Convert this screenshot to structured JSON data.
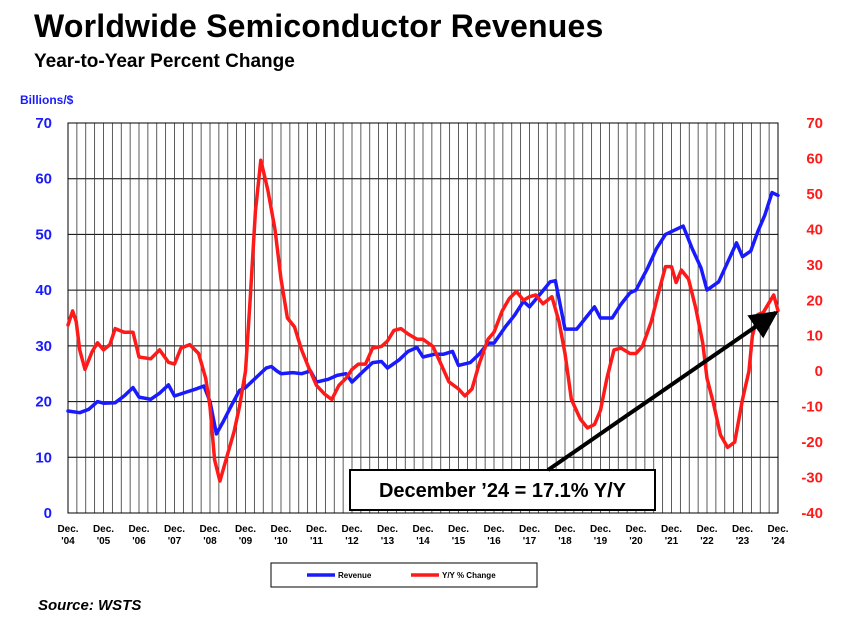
{
  "title": "Worldwide Semiconductor Revenues",
  "subtitle": "Year-to-Year Percent Change",
  "source": "Source: WSTS",
  "chart_data": {
    "type": "line",
    "title": "Worldwide Semiconductor Revenues",
    "subtitle": "Year-to-Year Percent Change",
    "ylabel": "Billions/$",
    "ylim": [
      0,
      70
    ],
    "y2lim": [
      -40,
      70
    ],
    "yticks": [
      0,
      10,
      20,
      30,
      40,
      50,
      60,
      70
    ],
    "y2ticks": [
      -40,
      -30,
      -20,
      -10,
      0,
      10,
      20,
      30,
      40,
      50,
      60,
      70
    ],
    "xlim": [
      2004.92,
      2024.92
    ],
    "x_ticks": [
      {
        "line1": "Dec.",
        "line2": "'04",
        "x": 2004.92
      },
      {
        "line1": "Dec.",
        "line2": "'05",
        "x": 2005.92
      },
      {
        "line1": "Dec.",
        "line2": "'06",
        "x": 2006.92
      },
      {
        "line1": "Dec.",
        "line2": "'07",
        "x": 2007.92
      },
      {
        "line1": "Dec.",
        "line2": "'08",
        "x": 2008.92
      },
      {
        "line1": "Dec.",
        "line2": "'09",
        "x": 2009.92
      },
      {
        "line1": "Dec.",
        "line2": "'10",
        "x": 2010.92
      },
      {
        "line1": "Dec.",
        "line2": "'11",
        "x": 2011.92
      },
      {
        "line1": "Dec.",
        "line2": "'12",
        "x": 2012.92
      },
      {
        "line1": "Dec.",
        "line2": "'13",
        "x": 2013.92
      },
      {
        "line1": "Dec.",
        "line2": "'14",
        "x": 2014.92
      },
      {
        "line1": "Dec.",
        "line2": "'15",
        "x": 2015.92
      },
      {
        "line1": "Dec.",
        "line2": "'16",
        "x": 2016.92
      },
      {
        "line1": "Dec.",
        "line2": "'17",
        "x": 2017.92
      },
      {
        "line1": "Dec.",
        "line2": "'18",
        "x": 2018.92
      },
      {
        "line1": "Dec.",
        "line2": "'19",
        "x": 2019.92
      },
      {
        "line1": "Dec.",
        "line2": "'20",
        "x": 2020.92
      },
      {
        "line1": "Dec.",
        "line2": "'21",
        "x": 2021.92
      },
      {
        "line1": "Dec.",
        "line2": "'22",
        "x": 2022.92
      },
      {
        "line1": "Dec.",
        "line2": "'23",
        "x": 2023.92
      },
      {
        "line1": "Dec.",
        "line2": "'24",
        "x": 2024.92
      }
    ],
    "grid": true,
    "legend": {
      "placement": "bottom-center"
    },
    "series": [
      {
        "name": "Revenue",
        "color": "#1a1aff",
        "axis": "left",
        "points": [
          [
            2004.92,
            18.3
          ],
          [
            2005.25,
            18.0
          ],
          [
            2005.5,
            18.6
          ],
          [
            2005.75,
            20.0
          ],
          [
            2005.92,
            19.7
          ],
          [
            2006.25,
            19.8
          ],
          [
            2006.5,
            21.0
          ],
          [
            2006.75,
            22.5
          ],
          [
            2006.92,
            20.8
          ],
          [
            2007.25,
            20.4
          ],
          [
            2007.5,
            21.5
          ],
          [
            2007.75,
            23.0
          ],
          [
            2007.92,
            21.0
          ],
          [
            2008.25,
            21.7
          ],
          [
            2008.5,
            22.2
          ],
          [
            2008.75,
            22.8
          ],
          [
            2008.92,
            20.0
          ],
          [
            2009.1,
            14.2
          ],
          [
            2009.3,
            16.5
          ],
          [
            2009.5,
            19.0
          ],
          [
            2009.75,
            22.0
          ],
          [
            2009.92,
            22.5
          ],
          [
            2010.25,
            24.5
          ],
          [
            2010.5,
            26.0
          ],
          [
            2010.65,
            26.3
          ],
          [
            2010.8,
            25.5
          ],
          [
            2010.92,
            25.0
          ],
          [
            2011.25,
            25.2
          ],
          [
            2011.5,
            25.0
          ],
          [
            2011.75,
            25.5
          ],
          [
            2011.92,
            23.5
          ],
          [
            2012.25,
            24.0
          ],
          [
            2012.5,
            24.7
          ],
          [
            2012.75,
            25.0
          ],
          [
            2012.92,
            23.5
          ],
          [
            2013.25,
            25.5
          ],
          [
            2013.5,
            27.0
          ],
          [
            2013.75,
            27.2
          ],
          [
            2013.92,
            26.0
          ],
          [
            2014.25,
            27.5
          ],
          [
            2014.5,
            29.0
          ],
          [
            2014.75,
            29.7
          ],
          [
            2014.92,
            28.0
          ],
          [
            2015.25,
            28.5
          ],
          [
            2015.5,
            28.5
          ],
          [
            2015.75,
            29.0
          ],
          [
            2015.92,
            26.5
          ],
          [
            2016.25,
            27.0
          ],
          [
            2016.5,
            28.5
          ],
          [
            2016.75,
            30.5
          ],
          [
            2016.92,
            30.5
          ],
          [
            2017.25,
            33.5
          ],
          [
            2017.5,
            35.5
          ],
          [
            2017.75,
            38.0
          ],
          [
            2017.92,
            37.0
          ],
          [
            2018.25,
            39.5
          ],
          [
            2018.5,
            41.5
          ],
          [
            2018.65,
            41.7
          ],
          [
            2018.92,
            33.0
          ],
          [
            2019.25,
            33.0
          ],
          [
            2019.5,
            35.0
          ],
          [
            2019.75,
            37.0
          ],
          [
            2019.92,
            35.0
          ],
          [
            2020.25,
            35.0
          ],
          [
            2020.5,
            37.5
          ],
          [
            2020.75,
            39.5
          ],
          [
            2020.92,
            40.0
          ],
          [
            2021.25,
            44.0
          ],
          [
            2021.5,
            47.5
          ],
          [
            2021.75,
            50.0
          ],
          [
            2021.92,
            50.5
          ],
          [
            2022.25,
            51.5
          ],
          [
            2022.5,
            47.5
          ],
          [
            2022.75,
            44.0
          ],
          [
            2022.92,
            40.0
          ],
          [
            2023.25,
            41.5
          ],
          [
            2023.5,
            45.0
          ],
          [
            2023.75,
            48.5
          ],
          [
            2023.92,
            46.0
          ],
          [
            2024.15,
            47.0
          ],
          [
            2024.35,
            50.5
          ],
          [
            2024.55,
            53.5
          ],
          [
            2024.75,
            57.5
          ],
          [
            2024.92,
            57.0
          ]
        ]
      },
      {
        "name": "Y/Y % Change",
        "color": "#ff1a1a",
        "axis": "right",
        "points": [
          [
            2004.92,
            13.0
          ],
          [
            2005.05,
            17.0
          ],
          [
            2005.15,
            14.0
          ],
          [
            2005.25,
            6.0
          ],
          [
            2005.4,
            0.5
          ],
          [
            2005.6,
            5.5
          ],
          [
            2005.75,
            8.0
          ],
          [
            2005.92,
            6.0
          ],
          [
            2006.1,
            7.5
          ],
          [
            2006.25,
            12.0
          ],
          [
            2006.5,
            11.0
          ],
          [
            2006.75,
            11.0
          ],
          [
            2006.92,
            4.0
          ],
          [
            2007.25,
            3.5
          ],
          [
            2007.5,
            6.0
          ],
          [
            2007.75,
            2.5
          ],
          [
            2007.92,
            2.0
          ],
          [
            2008.1,
            6.5
          ],
          [
            2008.35,
            7.5
          ],
          [
            2008.6,
            5.0
          ],
          [
            2008.8,
            -2.0
          ],
          [
            2008.92,
            -10.0
          ],
          [
            2009.05,
            -25.0
          ],
          [
            2009.2,
            -31.0
          ],
          [
            2009.4,
            -24.0
          ],
          [
            2009.6,
            -17.0
          ],
          [
            2009.75,
            -10.0
          ],
          [
            2009.92,
            0.0
          ],
          [
            2010.05,
            20.0
          ],
          [
            2010.2,
            45.0
          ],
          [
            2010.35,
            59.5
          ],
          [
            2010.55,
            51.0
          ],
          [
            2010.75,
            40.0
          ],
          [
            2010.92,
            26.0
          ],
          [
            2011.1,
            15.0
          ],
          [
            2011.3,
            12.5
          ],
          [
            2011.5,
            6.0
          ],
          [
            2011.7,
            1.0
          ],
          [
            2011.92,
            -4.0
          ],
          [
            2012.15,
            -6.5
          ],
          [
            2012.35,
            -8.0
          ],
          [
            2012.55,
            -4.0
          ],
          [
            2012.75,
            -2.0
          ],
          [
            2012.92,
            0.5
          ],
          [
            2013.1,
            2.0
          ],
          [
            2013.3,
            2.0
          ],
          [
            2013.5,
            6.5
          ],
          [
            2013.75,
            7.0
          ],
          [
            2013.92,
            8.5
          ],
          [
            2014.1,
            11.5
          ],
          [
            2014.3,
            12.0
          ],
          [
            2014.5,
            10.5
          ],
          [
            2014.75,
            9.0
          ],
          [
            2014.92,
            9.0
          ],
          [
            2015.2,
            7.0
          ],
          [
            2015.45,
            1.5
          ],
          [
            2015.65,
            -3.0
          ],
          [
            2015.92,
            -5.0
          ],
          [
            2016.1,
            -7.0
          ],
          [
            2016.3,
            -5.0
          ],
          [
            2016.5,
            2.0
          ],
          [
            2016.75,
            9.0
          ],
          [
            2016.92,
            11.0
          ],
          [
            2017.15,
            17.0
          ],
          [
            2017.35,
            20.5
          ],
          [
            2017.55,
            22.5
          ],
          [
            2017.75,
            20.0
          ],
          [
            2017.92,
            21.0
          ],
          [
            2018.1,
            21.5
          ],
          [
            2018.3,
            19.0
          ],
          [
            2018.55,
            21.0
          ],
          [
            2018.75,
            14.0
          ],
          [
            2018.92,
            5.0
          ],
          [
            2019.1,
            -8.0
          ],
          [
            2019.35,
            -13.5
          ],
          [
            2019.55,
            -16.0
          ],
          [
            2019.75,
            -15.0
          ],
          [
            2019.92,
            -11.0
          ],
          [
            2020.1,
            -2.0
          ],
          [
            2020.3,
            6.0
          ],
          [
            2020.5,
            6.5
          ],
          [
            2020.75,
            5.0
          ],
          [
            2020.92,
            5.0
          ],
          [
            2021.1,
            7.0
          ],
          [
            2021.35,
            14.0
          ],
          [
            2021.55,
            22.0
          ],
          [
            2021.75,
            29.5
          ],
          [
            2021.92,
            29.5
          ],
          [
            2022.05,
            25.0
          ],
          [
            2022.2,
            28.5
          ],
          [
            2022.4,
            26.0
          ],
          [
            2022.6,
            18.0
          ],
          [
            2022.8,
            8.0
          ],
          [
            2022.92,
            -2.0
          ],
          [
            2023.1,
            -9.0
          ],
          [
            2023.3,
            -18.0
          ],
          [
            2023.5,
            -21.5
          ],
          [
            2023.7,
            -20.0
          ],
          [
            2023.92,
            -8.0
          ],
          [
            2024.1,
            0.0
          ],
          [
            2024.2,
            10.0
          ],
          [
            2024.35,
            16.0
          ],
          [
            2024.5,
            16.5
          ],
          [
            2024.65,
            19.0
          ],
          [
            2024.8,
            21.5
          ],
          [
            2024.92,
            17.1
          ]
        ]
      }
    ],
    "annotation": {
      "text": "December ’24 = 17.1% Y/Y",
      "target": [
        2024.92,
        17.1
      ]
    }
  }
}
